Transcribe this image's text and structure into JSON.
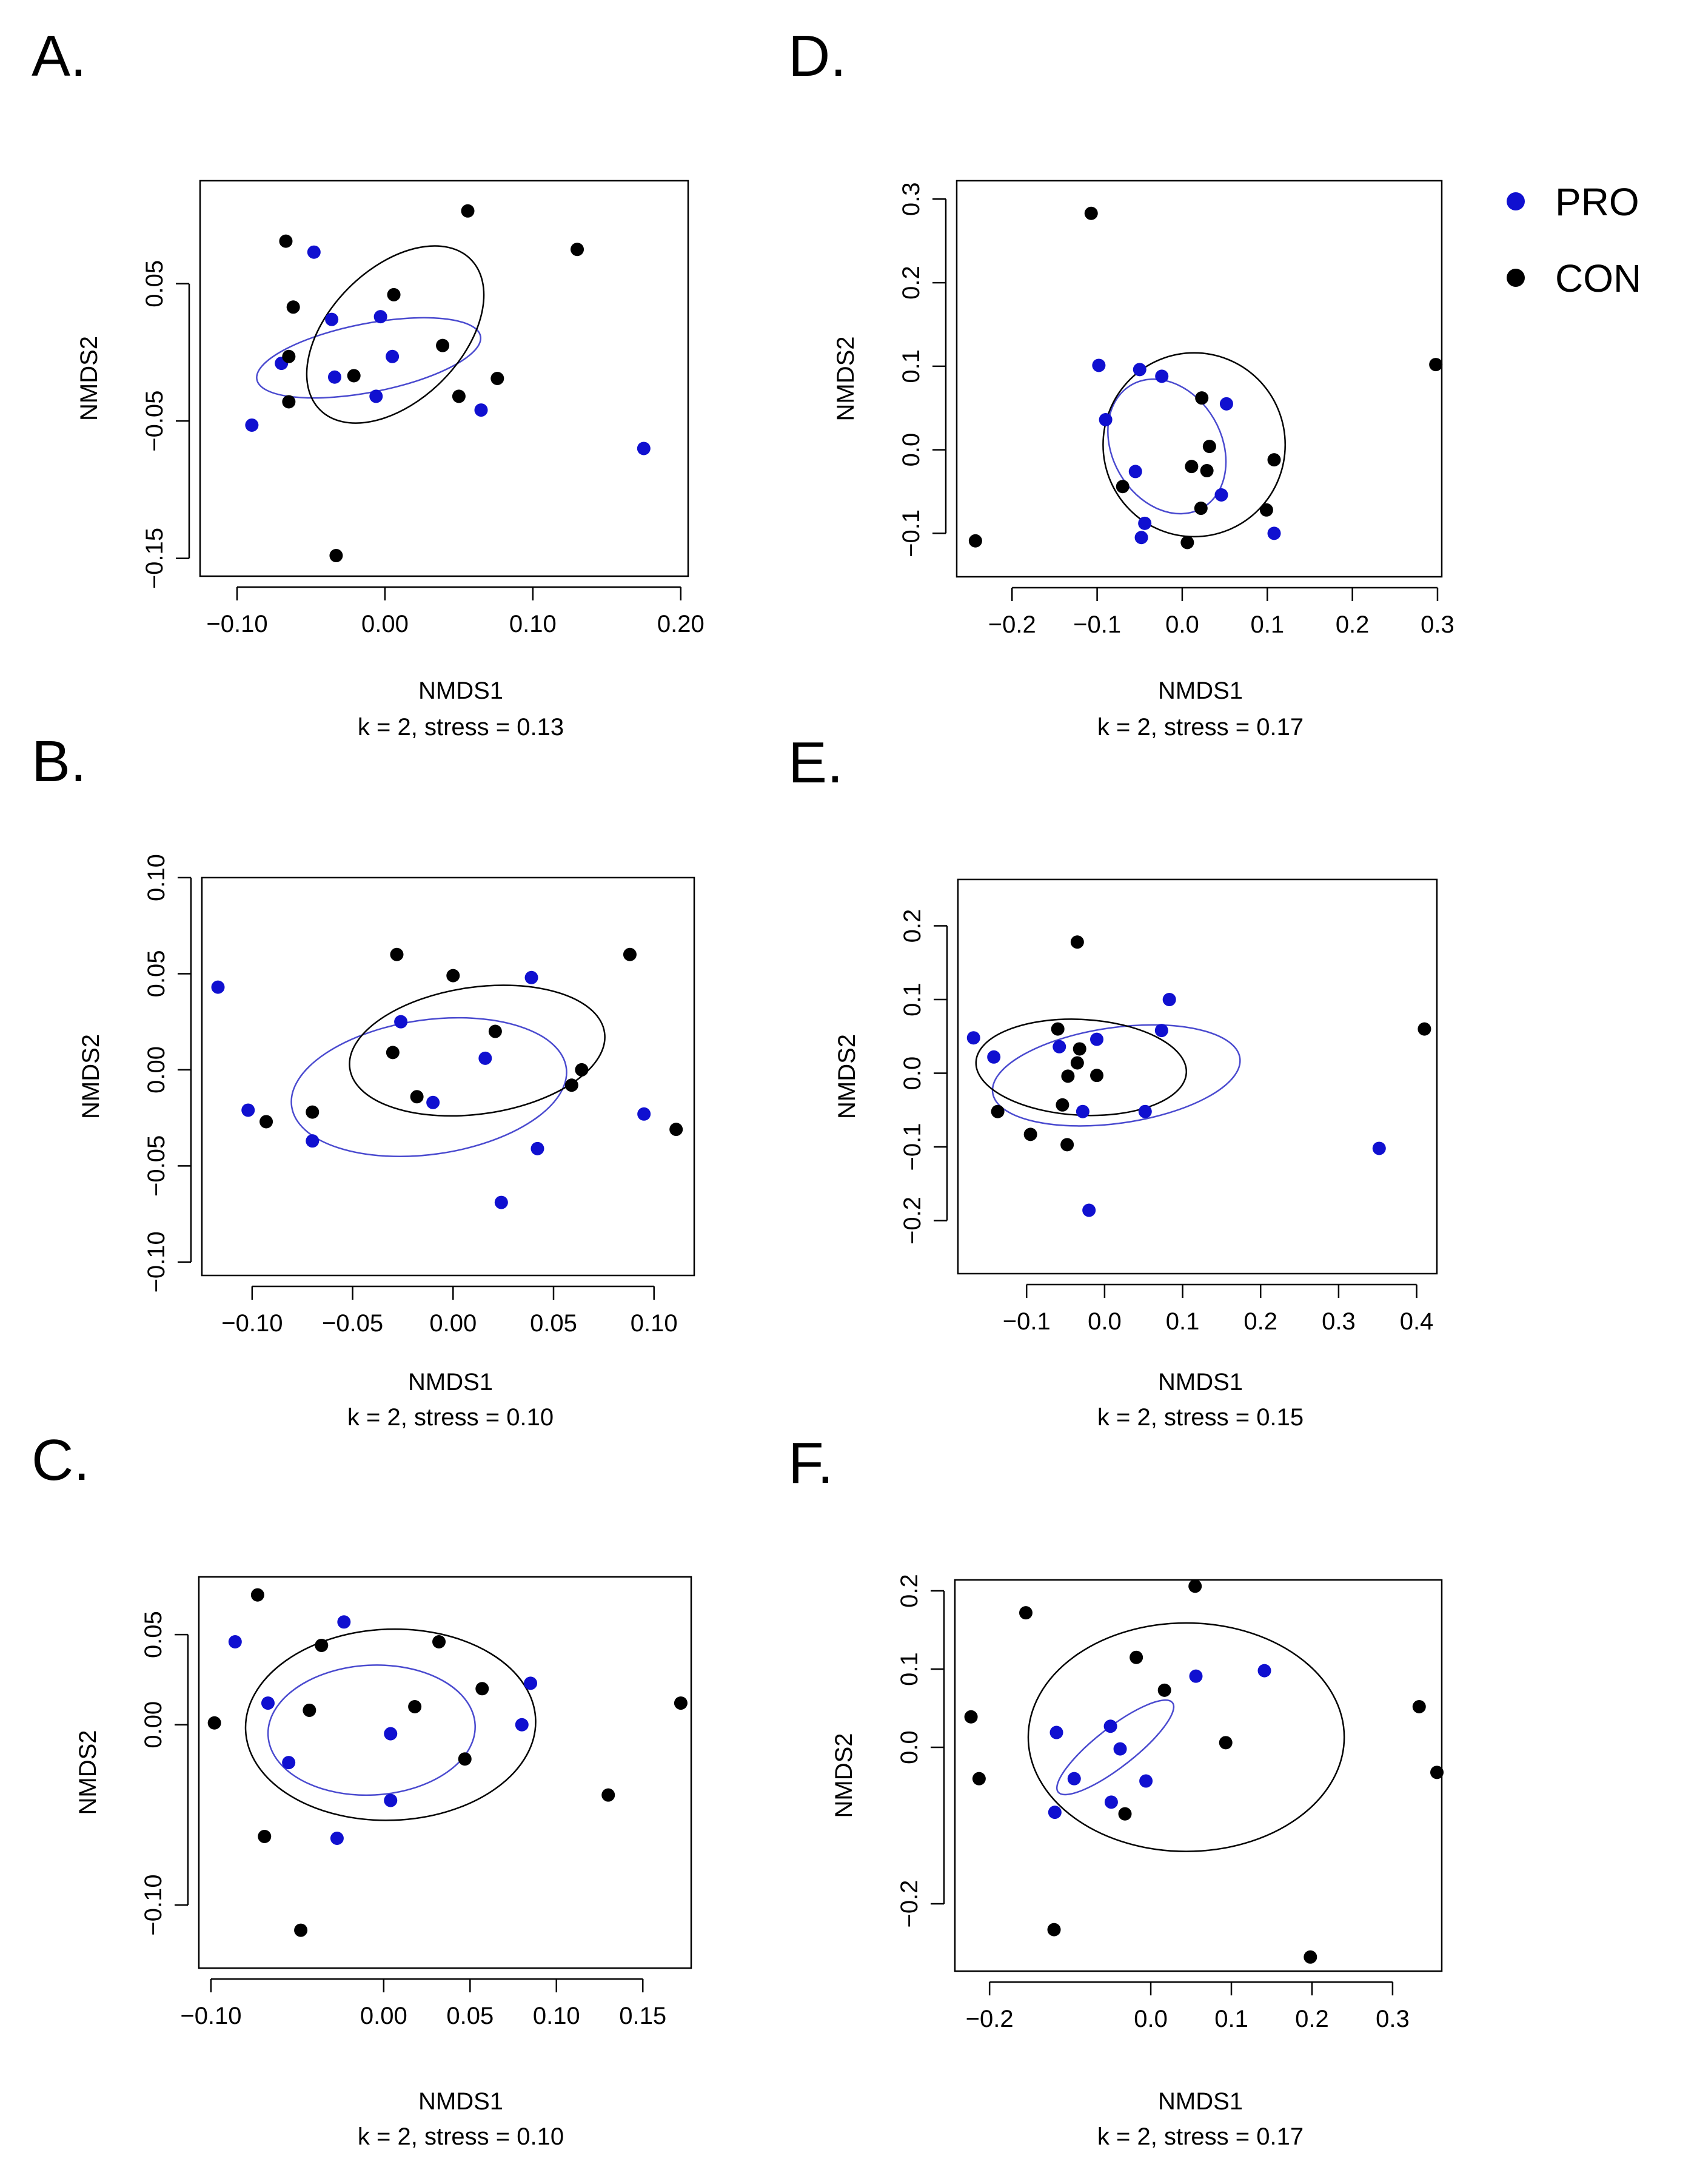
{
  "legend": {
    "items": [
      {
        "label": "PRO",
        "color": "#1010d0"
      },
      {
        "label": "CON",
        "color": "#000000"
      }
    ]
  },
  "chart_data": [
    {
      "id": "A",
      "panel_label": "A.",
      "type": "scatter",
      "xlabel": "NMDS1",
      "ylabel": "NMDS2",
      "stress_label": "k = 2, stress = 0.13",
      "xlim": [
        -0.125,
        0.205
      ],
      "ylim": [
        -0.163,
        0.125
      ],
      "xticks": [
        -0.1,
        0.0,
        0.1,
        0.2
      ],
      "xtick_labels": [
        "−0.10",
        "0.00",
        "0.10",
        "0.20"
      ],
      "yticks": [
        -0.15,
        -0.05,
        0.05
      ],
      "ytick_labels": [
        "−0.15",
        "−0.05",
        "0.05"
      ],
      "series": [
        {
          "name": "PRO",
          "color": "#1010d0",
          "points": [
            [
              -0.048,
              0.073
            ],
            [
              -0.036,
              0.024
            ],
            [
              -0.003,
              0.026
            ],
            [
              -0.07,
              -0.008
            ],
            [
              0.005,
              -0.003
            ],
            [
              -0.034,
              -0.018
            ],
            [
              -0.006,
              -0.032
            ],
            [
              0.065,
              -0.042
            ],
            [
              -0.09,
              -0.053
            ],
            [
              0.175,
              -0.07
            ]
          ],
          "ellipse": {
            "cx": -0.011,
            "cy": -0.004,
            "rx": 0.077,
            "ry": 0.025,
            "angle_deg": -11
          }
        },
        {
          "name": "CON",
          "color": "#000000",
          "points": [
            [
              0.056,
              0.103
            ],
            [
              -0.067,
              0.081
            ],
            [
              0.13,
              0.075
            ],
            [
              -0.062,
              0.033
            ],
            [
              0.006,
              0.042
            ],
            [
              0.039,
              0.005
            ],
            [
              -0.065,
              -0.003
            ],
            [
              -0.021,
              -0.017
            ],
            [
              0.076,
              -0.019
            ],
            [
              0.05,
              -0.032
            ],
            [
              -0.065,
              -0.036
            ],
            [
              -0.033,
              -0.148
            ]
          ],
          "ellipse": {
            "cx": 0.007,
            "cy": 0.013,
            "rx": 0.072,
            "ry": 0.048,
            "angle_deg": -45
          }
        }
      ]
    },
    {
      "id": "B",
      "panel_label": "B.",
      "type": "scatter",
      "xlabel": "NMDS1",
      "ylabel": "NMDS2",
      "stress_label": "k = 2, stress = 0.10",
      "xlim": [
        -0.125,
        0.12
      ],
      "ylim": [
        -0.107,
        0.1
      ],
      "xticks": [
        -0.1,
        -0.05,
        0.0,
        0.05,
        0.1
      ],
      "xtick_labels": [
        "−0.10",
        "−0.05",
        "0.00",
        "0.05",
        "0.10"
      ],
      "yticks": [
        -0.1,
        -0.05,
        0.0,
        0.05,
        0.1
      ],
      "ytick_labels": [
        "−0.10",
        "−0.05",
        "0.00",
        "0.05",
        "0.10"
      ],
      "series": [
        {
          "name": "PRO",
          "color": "#1010d0",
          "points": [
            [
              -0.117,
              0.043
            ],
            [
              0.039,
              0.048
            ],
            [
              -0.026,
              0.025
            ],
            [
              0.016,
              0.006
            ],
            [
              -0.102,
              -0.021
            ],
            [
              0.095,
              -0.023
            ],
            [
              -0.01,
              -0.017
            ],
            [
              -0.07,
              -0.037
            ],
            [
              0.042,
              -0.041
            ],
            [
              0.024,
              -0.069
            ]
          ],
          "ellipse": {
            "cx": -0.012,
            "cy": -0.009,
            "rx": 0.069,
            "ry": 0.035,
            "angle_deg": -8
          }
        },
        {
          "name": "CON",
          "color": "#000000",
          "points": [
            [
              -0.028,
              0.06
            ],
            [
              0.0,
              0.049
            ],
            [
              0.088,
              0.06
            ],
            [
              0.021,
              0.02
            ],
            [
              -0.03,
              0.009
            ],
            [
              0.064,
              0.0
            ],
            [
              0.059,
              -0.008
            ],
            [
              -0.093,
              -0.027
            ],
            [
              -0.07,
              -0.022
            ],
            [
              -0.018,
              -0.014
            ],
            [
              0.111,
              -0.031
            ]
          ],
          "ellipse": {
            "cx": 0.012,
            "cy": 0.01,
            "rx": 0.064,
            "ry": 0.033,
            "angle_deg": -8
          }
        }
      ]
    },
    {
      "id": "C",
      "panel_label": "C.",
      "type": "scatter",
      "xlabel": "NMDS1",
      "ylabel": "NMDS2",
      "stress_label": "k = 2, stress = 0.10",
      "xlim": [
        -0.107,
        0.178
      ],
      "ylim": [
        -0.135,
        0.082
      ],
      "xticks": [
        -0.1,
        0.0,
        0.05,
        0.1,
        0.15
      ],
      "xtick_labels": [
        "−0.10",
        "0.00",
        "0.05",
        "0.10",
        "0.15"
      ],
      "yticks": [
        -0.1,
        0.0,
        0.05
      ],
      "ytick_labels": [
        "−0.10",
        "0.00",
        "0.05"
      ],
      "series": [
        {
          "name": "PRO",
          "color": "#1010d0",
          "points": [
            [
              -0.023,
              0.057
            ],
            [
              -0.086,
              0.046
            ],
            [
              0.085,
              0.023
            ],
            [
              -0.067,
              0.012
            ],
            [
              0.08,
              0.0
            ],
            [
              0.004,
              -0.005
            ],
            [
              -0.055,
              -0.021
            ],
            [
              0.004,
              -0.042
            ],
            [
              -0.027,
              -0.063
            ]
          ],
          "ellipse": {
            "cx": -0.007,
            "cy": -0.003,
            "rx": 0.06,
            "ry": 0.036,
            "angle_deg": -3
          }
        },
        {
          "name": "CON",
          "color": "#000000",
          "points": [
            [
              -0.073,
              0.072
            ],
            [
              -0.036,
              0.044
            ],
            [
              0.032,
              0.046
            ],
            [
              0.057,
              0.02
            ],
            [
              0.018,
              0.01
            ],
            [
              -0.043,
              0.008
            ],
            [
              -0.098,
              0.001
            ],
            [
              0.047,
              -0.019
            ],
            [
              0.13,
              -0.039
            ],
            [
              -0.069,
              -0.062
            ],
            [
              0.172,
              0.012
            ],
            [
              -0.048,
              -0.114
            ]
          ],
          "ellipse": {
            "cx": 0.004,
            "cy": 0.0,
            "rx": 0.084,
            "ry": 0.053,
            "angle_deg": -2
          }
        }
      ]
    },
    {
      "id": "D",
      "panel_label": "D.",
      "type": "scatter",
      "xlabel": "NMDS1",
      "ylabel": "NMDS2",
      "stress_label": "k = 2, stress = 0.17",
      "xlim": [
        -0.265,
        0.305
      ],
      "ylim": [
        -0.152,
        0.322
      ],
      "xticks": [
        -0.2,
        -0.1,
        0.0,
        0.1,
        0.2,
        0.3
      ],
      "xtick_labels": [
        "−0.2",
        "−0.1",
        "0.0",
        "0.1",
        "0.2",
        "0.3"
      ],
      "yticks": [
        -0.1,
        0.0,
        0.1,
        0.2,
        0.3
      ],
      "ytick_labels": [
        "−0.1",
        "0.0",
        "0.1",
        "0.2",
        "0.3"
      ],
      "series": [
        {
          "name": "PRO",
          "color": "#1010d0",
          "points": [
            [
              -0.098,
              0.101
            ],
            [
              -0.05,
              0.096
            ],
            [
              -0.024,
              0.088
            ],
            [
              -0.09,
              0.036
            ],
            [
              0.052,
              0.055
            ],
            [
              -0.055,
              -0.026
            ],
            [
              0.046,
              -0.054
            ],
            [
              -0.044,
              -0.088
            ],
            [
              -0.048,
              -0.105
            ],
            [
              0.108,
              -0.1
            ]
          ],
          "ellipse": {
            "cx": -0.018,
            "cy": 0.004,
            "rx": 0.064,
            "ry": 0.085,
            "angle_deg": -30
          }
        },
        {
          "name": "CON",
          "color": "#000000",
          "points": [
            [
              -0.107,
              0.283
            ],
            [
              0.298,
              0.102
            ],
            [
              0.023,
              0.062
            ],
            [
              0.032,
              0.004
            ],
            [
              0.108,
              -0.012
            ],
            [
              0.011,
              -0.02
            ],
            [
              0.029,
              -0.025
            ],
            [
              -0.07,
              -0.044
            ],
            [
              0.022,
              -0.07
            ],
            [
              0.099,
              -0.072
            ],
            [
              0.006,
              -0.111
            ],
            [
              -0.243,
              -0.109
            ]
          ],
          "ellipse": {
            "cx": 0.014,
            "cy": 0.006,
            "rx": 0.107,
            "ry": 0.11,
            "angle_deg": 0
          }
        }
      ]
    },
    {
      "id": "E",
      "panel_label": "E.",
      "type": "scatter",
      "xlabel": "NMDS1",
      "ylabel": "NMDS2",
      "stress_label": "k = 2, stress = 0.15",
      "xlim": [
        -0.188,
        0.426
      ],
      "ylim": [
        -0.272,
        0.263
      ],
      "xticks": [
        -0.1,
        0.0,
        0.1,
        0.2,
        0.3,
        0.4
      ],
      "xtick_labels": [
        "−0.1",
        "0.0",
        "0.1",
        "0.2",
        "0.3",
        "0.4"
      ],
      "yticks": [
        -0.2,
        -0.1,
        0.0,
        0.1,
        0.2
      ],
      "ytick_labels": [
        "−0.2",
        "−0.1",
        "0.0",
        "0.1",
        "0.2"
      ],
      "series": [
        {
          "name": "PRO",
          "color": "#1010d0",
          "points": [
            [
              -0.168,
              0.048
            ],
            [
              -0.142,
              0.022
            ],
            [
              0.083,
              0.1
            ],
            [
              0.073,
              0.058
            ],
            [
              -0.01,
              0.046
            ],
            [
              -0.058,
              0.036
            ],
            [
              -0.028,
              -0.052
            ],
            [
              0.052,
              -0.052
            ],
            [
              0.352,
              -0.102
            ],
            [
              -0.02,
              -0.186
            ]
          ],
          "ellipse": {
            "cx": 0.015,
            "cy": -0.003,
            "rx": 0.16,
            "ry": 0.065,
            "angle_deg": -8
          }
        },
        {
          "name": "CON",
          "color": "#000000",
          "points": [
            [
              -0.035,
              0.178
            ],
            [
              0.41,
              0.06
            ],
            [
              -0.06,
              0.06
            ],
            [
              -0.032,
              0.033
            ],
            [
              -0.035,
              0.014
            ],
            [
              -0.047,
              -0.004
            ],
            [
              -0.01,
              -0.003
            ],
            [
              -0.054,
              -0.043
            ],
            [
              -0.137,
              -0.052
            ],
            [
              -0.095,
              -0.083
            ],
            [
              -0.048,
              -0.097
            ]
          ],
          "ellipse": {
            "cx": -0.03,
            "cy": 0.008,
            "rx": 0.135,
            "ry": 0.065,
            "angle_deg": 3
          }
        }
      ]
    },
    {
      "id": "F",
      "panel_label": "F.",
      "type": "scatter",
      "xlabel": "NMDS1",
      "ylabel": "NMDS2",
      "stress_label": "k = 2, stress = 0.17",
      "xlim": [
        -0.243,
        0.361
      ],
      "ylim": [
        -0.286,
        0.214
      ],
      "xticks": [
        -0.2,
        0.0,
        0.1,
        0.2,
        0.3
      ],
      "xtick_labels": [
        "−0.2",
        "0.0",
        "0.1",
        "0.2",
        "0.3"
      ],
      "yticks": [
        -0.2,
        0.0,
        0.1,
        0.2
      ],
      "ytick_labels": [
        "−0.2",
        "0.0",
        "0.1",
        "0.2"
      ],
      "series": [
        {
          "name": "PRO",
          "color": "#1010d0",
          "points": [
            [
              0.141,
              0.098
            ],
            [
              0.056,
              0.091
            ],
            [
              -0.117,
              0.019
            ],
            [
              -0.05,
              0.027
            ],
            [
              -0.038,
              -0.002
            ],
            [
              -0.095,
              -0.04
            ],
            [
              -0.006,
              -0.043
            ],
            [
              -0.049,
              -0.07
            ],
            [
              -0.119,
              -0.083
            ]
          ],
          "ellipse": {
            "cx": -0.044,
            "cy": 0.0,
            "rx": 0.09,
            "ry": 0.025,
            "angle_deg": -38
          }
        },
        {
          "name": "CON",
          "color": "#000000",
          "points": [
            [
              0.055,
              0.206
            ],
            [
              -0.155,
              0.172
            ],
            [
              -0.018,
              0.115
            ],
            [
              0.017,
              0.073
            ],
            [
              0.333,
              0.052
            ],
            [
              -0.223,
              0.039
            ],
            [
              0.093,
              0.006
            ],
            [
              -0.213,
              -0.04
            ],
            [
              0.355,
              -0.032
            ],
            [
              -0.032,
              -0.085
            ],
            [
              -0.12,
              -0.233
            ],
            [
              0.198,
              -0.268
            ]
          ],
          "ellipse": {
            "cx": 0.044,
            "cy": 0.013,
            "rx": 0.196,
            "ry": 0.146,
            "angle_deg": 0
          }
        }
      ]
    }
  ]
}
